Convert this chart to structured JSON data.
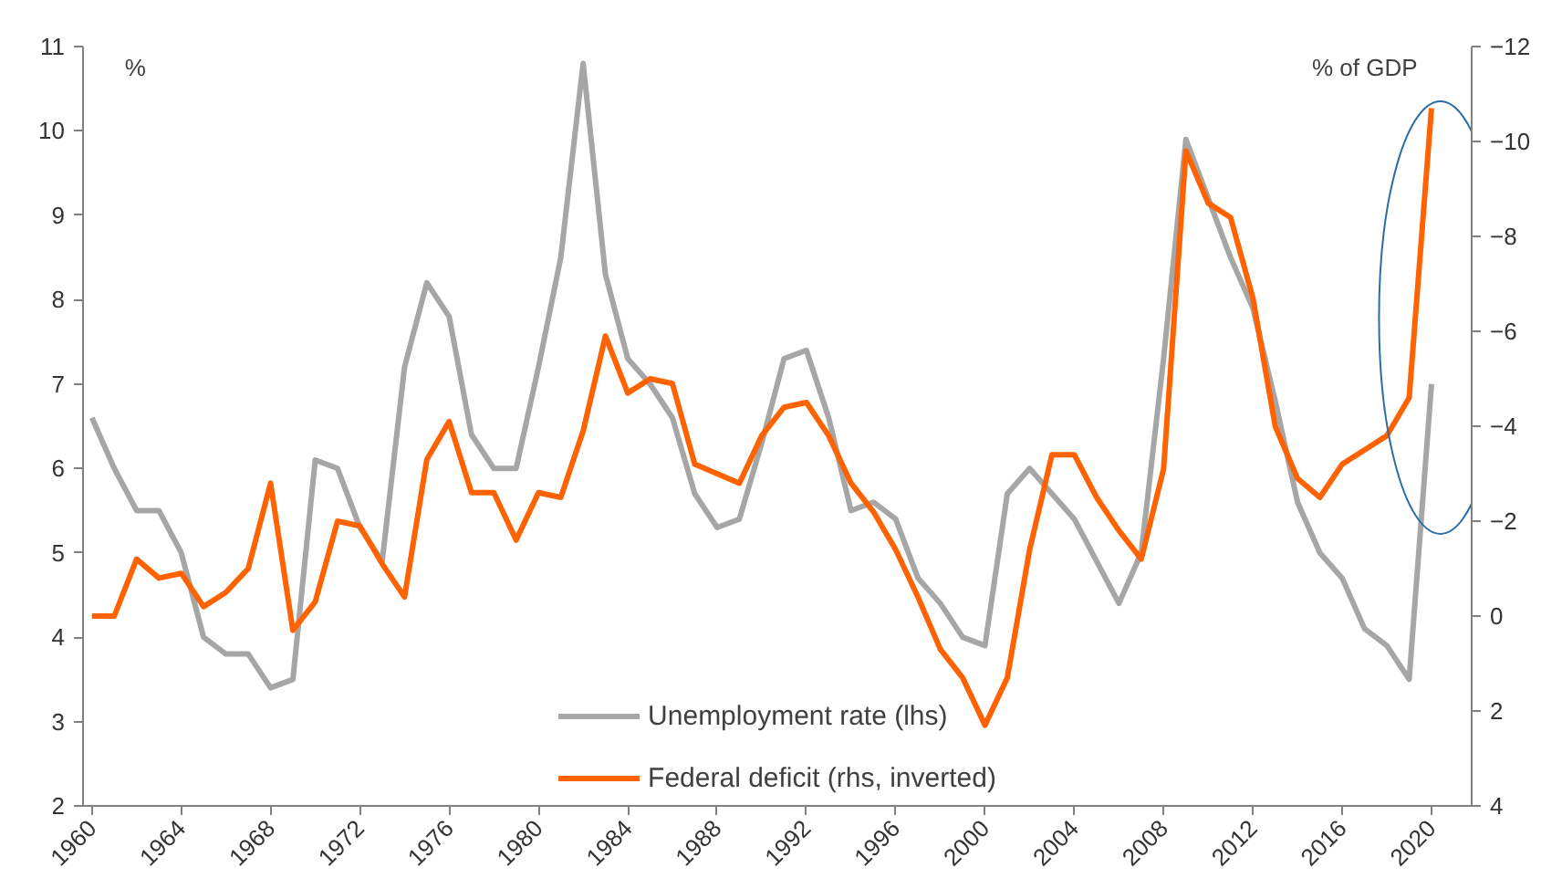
{
  "chart_data": {
    "type": "line",
    "ylabel": "%",
    "y2label": "% of GDP",
    "x": [
      1960,
      1961,
      1962,
      1963,
      1964,
      1965,
      1966,
      1967,
      1968,
      1969,
      1970,
      1971,
      1972,
      1973,
      1974,
      1975,
      1976,
      1977,
      1978,
      1979,
      1980,
      1981,
      1982,
      1983,
      1984,
      1985,
      1986,
      1987,
      1988,
      1989,
      1990,
      1991,
      1992,
      1993,
      1994,
      1995,
      1996,
      1997,
      1998,
      1999,
      2000,
      2001,
      2002,
      2003,
      2004,
      2005,
      2006,
      2007,
      2008,
      2009,
      2010,
      2011,
      2012,
      2013,
      2014,
      2015,
      2016,
      2017,
      2018,
      2019,
      2020
    ],
    "xlim": [
      1959.6,
      2021.8
    ],
    "xticks": [
      1960,
      1964,
      1968,
      1972,
      1976,
      1980,
      1984,
      1988,
      1992,
      1996,
      2000,
      2004,
      2008,
      2012,
      2016,
      2020
    ],
    "ylim": [
      2,
      11
    ],
    "yticks": [
      2,
      3,
      4,
      5,
      6,
      7,
      8,
      9,
      10,
      11
    ],
    "y2lim": [
      4,
      -12
    ],
    "y2ticks": [
      4,
      2,
      0,
      -2,
      -4,
      -6,
      -8,
      -10,
      -12
    ],
    "series": [
      {
        "name": "Unemployment rate (lhs)",
        "color": "#a6a6a6",
        "values": [
          6.6,
          6.0,
          5.5,
          5.5,
          5.0,
          4.0,
          3.8,
          3.8,
          3.4,
          3.5,
          6.1,
          6.0,
          5.3,
          4.9,
          7.2,
          8.2,
          7.8,
          6.4,
          6.0,
          6.0,
          7.2,
          8.5,
          10.8,
          8.3,
          7.3,
          7.0,
          6.6,
          5.7,
          5.3,
          5.4,
          6.3,
          7.3,
          7.4,
          6.6,
          5.5,
          5.6,
          5.4,
          4.7,
          4.4,
          4.0,
          3.9,
          5.7,
          6.0,
          5.7,
          5.4,
          4.9,
          4.4,
          5.0,
          7.3,
          9.9,
          9.2,
          8.5,
          7.9,
          6.8,
          5.6,
          5.0,
          4.7,
          4.1,
          3.9,
          3.5,
          7.0
        ]
      },
      {
        "name": "Federal deficit (rhs, inverted)",
        "color": "#ff6200",
        "axis": "y2",
        "values": [
          0.0,
          0.0,
          -1.2,
          -0.8,
          -0.9,
          -0.2,
          -0.5,
          -1.0,
          -2.8,
          0.3,
          -0.3,
          -2.0,
          -1.9,
          -1.1,
          -0.4,
          -3.3,
          -4.1,
          -2.6,
          -2.6,
          -1.6,
          -2.6,
          -2.5,
          -3.9,
          -5.9,
          -4.7,
          -5.0,
          -4.9,
          -3.2,
          -3.0,
          -2.8,
          -3.8,
          -4.4,
          -4.5,
          -3.8,
          -2.8,
          -2.2,
          -1.4,
          -0.4,
          0.7,
          1.3,
          2.3,
          1.3,
          -1.4,
          -3.4,
          -3.4,
          -2.5,
          -1.8,
          -1.2,
          -3.1,
          -9.8,
          -8.7,
          -8.4,
          -6.7,
          -4.0,
          -2.9,
          -2.5,
          -3.2,
          -3.5,
          -3.8,
          -4.6,
          -10.7
        ]
      }
    ],
    "legend": "bottom",
    "grid": false,
    "marker": "none",
    "line_style": "solid"
  }
}
